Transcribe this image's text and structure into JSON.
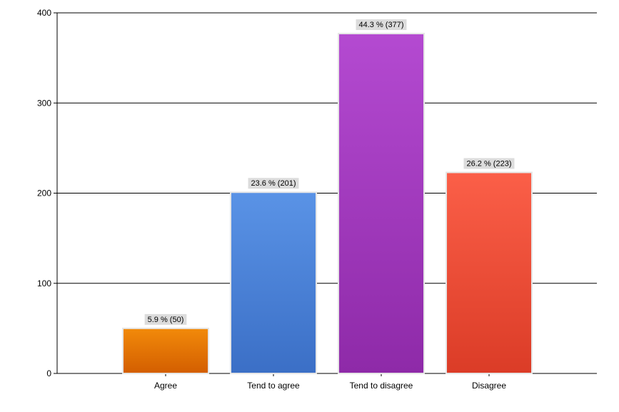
{
  "chart_data": {
    "type": "bar",
    "categories": [
      "Agree",
      "Tend to agree",
      "Tend to disagree",
      "Disagree"
    ],
    "values": [
      50,
      201,
      377,
      223
    ],
    "data_labels": [
      "5.9 % (50)",
      "23.6 % (201)",
      "44.3 % (377)",
      "26.2 % (223)"
    ],
    "ylim": [
      0,
      400
    ],
    "yticks": [
      0,
      100,
      200,
      300,
      400
    ],
    "grid": true,
    "legend": "none",
    "colors": [
      {
        "top": "#f28a0a",
        "bottom": "#d35e00"
      },
      {
        "top": "#5a93e6",
        "bottom": "#3b6fc6"
      },
      {
        "top": "#b44ad1",
        "bottom": "#8e2aa8"
      },
      {
        "top": "#fb5f48",
        "bottom": "#db3c27"
      }
    ]
  }
}
